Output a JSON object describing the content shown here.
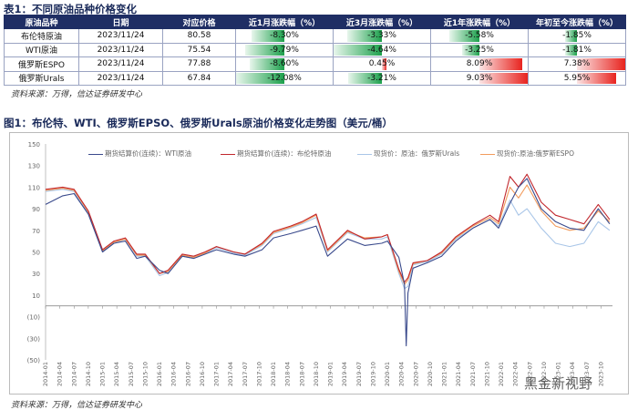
{
  "table_title": "表1：不同原油品种价格变化",
  "table": {
    "headers": [
      "原油品种",
      "日期",
      "对应价格",
      "近1月涨跌幅（%）",
      "近3月涨跌幅（%）",
      "近1年涨跌幅（%）",
      "年初至今涨跌幅（%）"
    ],
    "rows": [
      {
        "name": "布伦特原油",
        "date": "2023/11/24",
        "price": "80.58",
        "m1": "-8.30%",
        "m3": "-3.33%",
        "y1": "-5.58%",
        "ytd": "-1.85%"
      },
      {
        "name": "WTI原油",
        "date": "2023/11/24",
        "price": "75.54",
        "m1": "-9.79%",
        "m3": "-4.64%",
        "y1": "-3.25%",
        "ytd": "-1.81%"
      },
      {
        "name": "俄罗斯ESPO",
        "date": "2023/11/24",
        "price": "77.88",
        "m1": "-8.60%",
        "m3": "0.45%",
        "y1": "8.09%",
        "ytd": "7.38%"
      },
      {
        "name": "俄罗斯Urals",
        "date": "2023/11/24",
        "price": "67.84",
        "m1": "-12.08%",
        "m3": "-3.21%",
        "y1": "9.03%",
        "ytd": "5.95%"
      }
    ],
    "bars": {
      "m1": [
        -8.3,
        -9.79,
        -8.6,
        -12.08
      ],
      "m3": [
        -3.33,
        -4.64,
        0.45,
        -3.21
      ],
      "y1": [
        -5.58,
        -3.25,
        8.09,
        9.03
      ],
      "ytd": [
        -1.85,
        -1.81,
        7.38,
        5.95
      ]
    },
    "bar_scale": {
      "m1": 12.08,
      "m3": 4.64,
      "y1": 9.03,
      "ytd": 7.38
    }
  },
  "source1": "资料来源：万得，信达证券研发中心",
  "chart_title": "图1：布伦特、WTI、俄罗斯EPSO、俄罗斯Urals原油价格变化走势图（美元/桶）",
  "source2": "资料来源：万得，信达证券研发中心",
  "watermark": "黑金新视野",
  "chart_data": {
    "type": "line",
    "ylim": [
      -40,
      150
    ],
    "yticks": [
      "150",
      "130",
      "110",
      "90",
      "70",
      "50",
      "30",
      "10",
      "(10)",
      "(30)",
      "(50)"
    ],
    "ytick_values": [
      150,
      130,
      110,
      90,
      70,
      50,
      30,
      10,
      -10,
      -30,
      -50
    ],
    "xticks": [
      "2014-01",
      "2014-04",
      "2014-07",
      "2014-10",
      "2015-01",
      "2015-04",
      "2015-07",
      "2015-10",
      "2016-01",
      "2016-04",
      "2016-07",
      "2016-10",
      "2017-01",
      "2017-04",
      "2017-07",
      "2017-10",
      "2018-01",
      "2018-04",
      "2018-07",
      "2018-10",
      "2019-01",
      "2019-04",
      "2019-07",
      "2019-10",
      "2020-01",
      "2020-04",
      "2020-07",
      "2020-10",
      "2021-01",
      "2021-04",
      "2021-07",
      "2021-10",
      "2022-01",
      "2022-04",
      "2022-07",
      "2022-10",
      "2023-01",
      "2023-04",
      "2023-07",
      "2023-10"
    ],
    "series": [
      {
        "name": "期货结算价(连续)：WTI原油",
        "color": "#3a4a8c",
        "x": [
          2014.0,
          2014.3,
          2014.5,
          2014.75,
          2015.0,
          2015.2,
          2015.4,
          2015.6,
          2015.75,
          2016.0,
          2016.15,
          2016.4,
          2016.6,
          2016.8,
          2017.0,
          2017.3,
          2017.5,
          2017.8,
          2018.0,
          2018.3,
          2018.5,
          2018.75,
          2018.95,
          2019.3,
          2019.6,
          2019.9,
          2020.0,
          2020.2,
          2020.3,
          2020.33,
          2020.36,
          2020.45,
          2020.7,
          2020.95,
          2021.2,
          2021.5,
          2021.8,
          2021.95,
          2022.15,
          2022.3,
          2022.45,
          2022.7,
          2022.95,
          2023.2,
          2023.45,
          2023.7,
          2023.9
        ],
        "values": [
          94,
          102,
          104,
          85,
          50,
          58,
          60,
          44,
          46,
          33,
          30,
          46,
          44,
          48,
          52,
          48,
          46,
          52,
          63,
          67,
          70,
          74,
          46,
          62,
          56,
          58,
          60,
          45,
          20,
          -37,
          12,
          35,
          40,
          46,
          60,
          72,
          80,
          72,
          95,
          110,
          118,
          90,
          78,
          72,
          70,
          90,
          76
        ]
      },
      {
        "name": "期货结算价(连续)：布伦特原油",
        "color": "#c1272d",
        "x": [
          2014.0,
          2014.3,
          2014.5,
          2014.75,
          2015.0,
          2015.2,
          2015.4,
          2015.6,
          2015.75,
          2016.0,
          2016.15,
          2016.4,
          2016.6,
          2016.8,
          2017.0,
          2017.3,
          2017.5,
          2017.8,
          2018.0,
          2018.3,
          2018.5,
          2018.75,
          2018.95,
          2019.3,
          2019.6,
          2019.9,
          2020.0,
          2020.2,
          2020.3,
          2020.36,
          2020.45,
          2020.7,
          2020.95,
          2021.2,
          2021.5,
          2021.8,
          2021.95,
          2022.15,
          2022.3,
          2022.45,
          2022.7,
          2022.95,
          2023.2,
          2023.45,
          2023.7,
          2023.9
        ],
        "values": [
          108,
          110,
          108,
          88,
          52,
          60,
          63,
          48,
          48,
          30,
          33,
          48,
          46,
          50,
          55,
          50,
          48,
          58,
          69,
          74,
          78,
          85,
          52,
          70,
          62,
          64,
          66,
          34,
          22,
          26,
          40,
          42,
          50,
          64,
          75,
          84,
          78,
          120,
          110,
          122,
          96,
          84,
          80,
          76,
          94,
          80
        ]
      },
      {
        "name": "现货价：原油：俄罗斯Urals",
        "color": "#a9c6e8",
        "x": [
          2014.0,
          2014.3,
          2014.5,
          2014.75,
          2015.0,
          2015.2,
          2015.4,
          2015.6,
          2015.75,
          2016.0,
          2016.15,
          2016.4,
          2016.6,
          2016.8,
          2017.0,
          2017.3,
          2017.5,
          2017.8,
          2018.0,
          2018.3,
          2018.5,
          2018.75,
          2018.95,
          2019.3,
          2019.6,
          2019.9,
          2020.0,
          2020.2,
          2020.3,
          2020.36,
          2020.45,
          2020.7,
          2020.95,
          2021.2,
          2021.5,
          2021.8,
          2021.95,
          2022.15,
          2022.3,
          2022.45,
          2022.7,
          2022.95,
          2023.2,
          2023.45,
          2023.7,
          2023.9
        ],
        "values": [
          106,
          108,
          106,
          86,
          50,
          58,
          62,
          46,
          46,
          28,
          31,
          46,
          44,
          48,
          54,
          49,
          47,
          56,
          67,
          72,
          76,
          82,
          50,
          68,
          62,
          62,
          64,
          30,
          16,
          18,
          38,
          41,
          48,
          62,
          72,
          80,
          74,
          98,
          84,
          90,
          72,
          58,
          55,
          58,
          78,
          70
        ]
      },
      {
        "name": "现货价:原油:俄罗斯ESPO",
        "color": "#f29b5c",
        "x": [
          2014.0,
          2014.3,
          2014.5,
          2014.75,
          2015.0,
          2015.2,
          2015.4,
          2015.6,
          2015.75,
          2016.0,
          2016.15,
          2016.4,
          2016.6,
          2016.8,
          2017.0,
          2017.3,
          2017.5,
          2017.8,
          2018.0,
          2018.3,
          2018.5,
          2018.75,
          2018.95,
          2019.3,
          2019.6,
          2019.9,
          2020.0,
          2020.2,
          2020.3,
          2020.36,
          2020.45,
          2020.7,
          2020.95,
          2021.2,
          2021.5,
          2021.8,
          2021.95,
          2022.15,
          2022.3,
          2022.45,
          2022.7,
          2022.95,
          2023.2,
          2023.45,
          2023.7,
          2023.9
        ],
        "values": [
          107,
          109,
          107,
          87,
          51,
          59,
          62,
          47,
          47,
          30,
          32,
          47,
          45,
          49,
          55,
          50,
          48,
          57,
          68,
          73,
          77,
          84,
          51,
          69,
          63,
          64,
          66,
          32,
          20,
          24,
          39,
          42,
          49,
          63,
          74,
          82,
          76,
          110,
          100,
          112,
          88,
          74,
          70,
          72,
          88,
          78
        ]
      }
    ]
  }
}
